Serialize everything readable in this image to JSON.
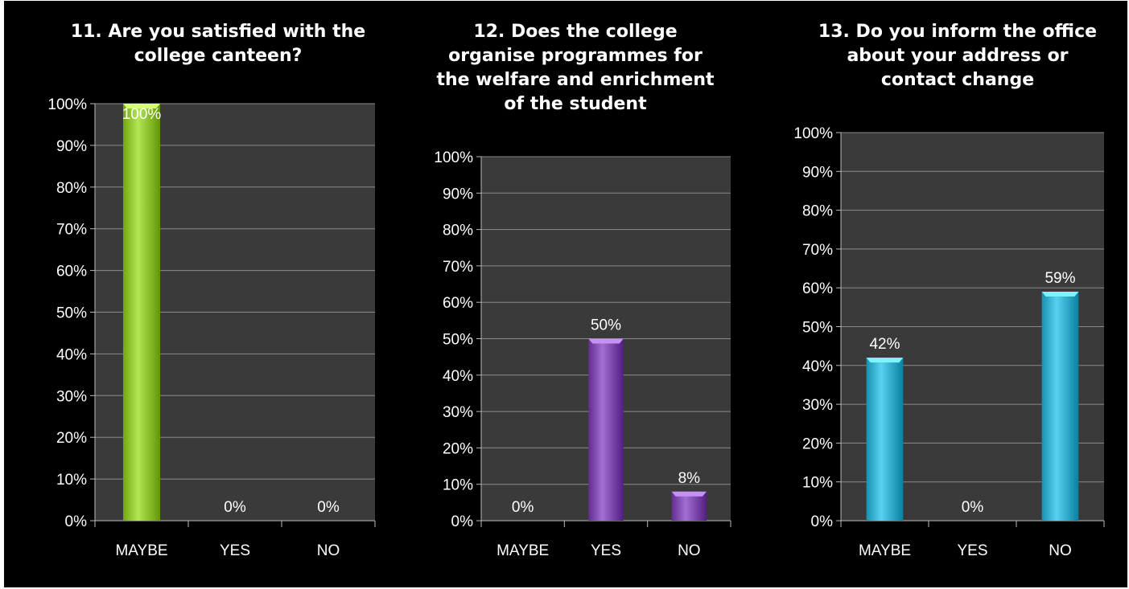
{
  "chart_data": [
    {
      "type": "bar",
      "title": "11. Are you satisfied with the college canteen?",
      "title_lines": [
        "11. Are you satisfied with the",
        "college canteen?"
      ],
      "categories": [
        "MAYBE",
        "YES",
        "NO"
      ],
      "values": [
        100,
        0,
        0
      ],
      "data_labels": [
        "100%",
        "0%",
        "0%"
      ],
      "y_ticks": [
        "0%",
        "10%",
        "20%",
        "30%",
        "40%",
        "50%",
        "60%",
        "70%",
        "80%",
        "90%",
        "100%"
      ],
      "ylim": [
        0,
        100
      ],
      "grid": true,
      "color": "#9acd3c"
    },
    {
      "type": "bar",
      "title": "12. Does the college organise programmes for the welfare and enrichment of the student",
      "title_lines": [
        "12. Does the college",
        "organise programmes for",
        "the welfare and enrichment",
        "of the student"
      ],
      "categories": [
        "MAYBE",
        "YES",
        "NO"
      ],
      "values": [
        0,
        50,
        8
      ],
      "data_labels": [
        "0%",
        "50%",
        "8%"
      ],
      "y_ticks": [
        "0%",
        "10%",
        "20%",
        "30%",
        "40%",
        "50%",
        "60%",
        "70%",
        "80%",
        "90%",
        "100%"
      ],
      "ylim": [
        0,
        100
      ],
      "grid": true,
      "color": "#8a55b8"
    },
    {
      "type": "bar",
      "title": "13. Do you inform the office about your address or contact change",
      "title_lines": [
        "13. Do you inform the office",
        "about your address or",
        "contact change"
      ],
      "categories": [
        "MAYBE",
        "YES",
        "NO"
      ],
      "values": [
        42,
        0,
        59
      ],
      "data_labels": [
        "42%",
        "0%",
        "59%"
      ],
      "y_ticks": [
        "0%",
        "10%",
        "20%",
        "30%",
        "40%",
        "50%",
        "60%",
        "70%",
        "80%",
        "90%",
        "100%"
      ],
      "ylim": [
        0,
        100
      ],
      "grid": true,
      "color": "#3fb8d8"
    }
  ]
}
